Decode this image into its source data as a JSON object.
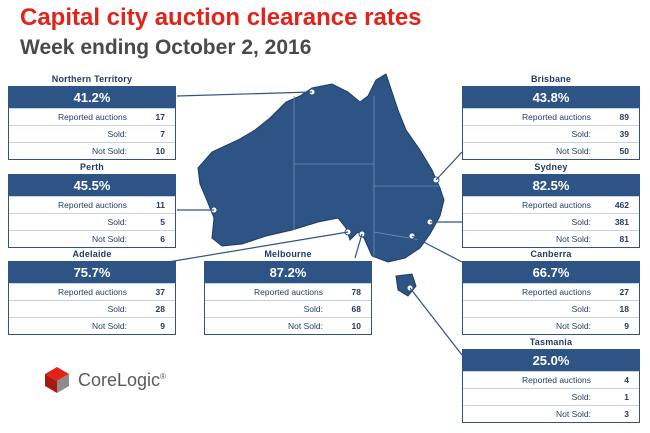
{
  "header": {
    "title": "Capital city auction clearance rates",
    "subtitle": "Week ending October 2, 2016"
  },
  "labels": {
    "reported": "Reported auctions",
    "sold": "Sold:",
    "not_sold": "Not Sold:"
  },
  "cities": [
    {
      "name": "Northern Territory",
      "rate": "41.2%",
      "reported": "17",
      "sold": "7",
      "not_sold": "10"
    },
    {
      "name": "Perth",
      "rate": "45.5%",
      "reported": "11",
      "sold": "5",
      "not_sold": "6"
    },
    {
      "name": "Adelaide",
      "rate": "75.7%",
      "reported": "37",
      "sold": "28",
      "not_sold": "9"
    },
    {
      "name": "Melbourne",
      "rate": "87.2%",
      "reported": "78",
      "sold": "68",
      "not_sold": "10"
    },
    {
      "name": "Brisbane",
      "rate": "43.8%",
      "reported": "89",
      "sold": "39",
      "not_sold": "50"
    },
    {
      "name": "Sydney",
      "rate": "82.5%",
      "reported": "462",
      "sold": "381",
      "not_sold": "81"
    },
    {
      "name": "Canberra",
      "rate": "66.7%",
      "reported": "27",
      "sold": "18",
      "not_sold": "9"
    },
    {
      "name": "Tasmania",
      "rate": "25.0%",
      "reported": "4",
      "sold": "1",
      "not_sold": "3"
    }
  ],
  "logo": {
    "text": "CoreLogic",
    "mark": "®"
  },
  "colors": {
    "title": "#e2231a",
    "primary": "#2d5485",
    "map": "#2d5485",
    "text": "#1f3a5f"
  }
}
